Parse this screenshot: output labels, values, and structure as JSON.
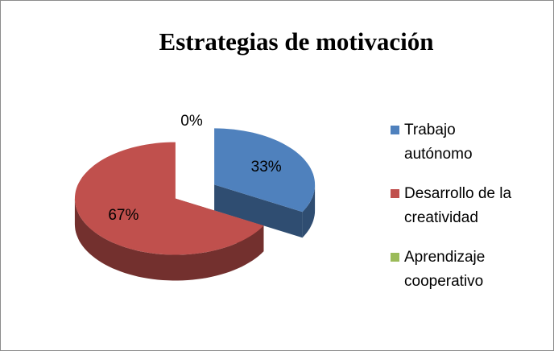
{
  "chart_data": {
    "type": "pie3d",
    "title": "Estrategias de motivación",
    "categories": [
      "Trabajo autónomo",
      "Desarrollo de la creatividad",
      "Aprendizaje cooperativo"
    ],
    "values": [
      33,
      67,
      0
    ],
    "value_labels": [
      "33%",
      "67%",
      "0%"
    ],
    "colors": [
      "#4f81bd",
      "#c0504d",
      "#9bbb59"
    ],
    "legend": "right"
  }
}
